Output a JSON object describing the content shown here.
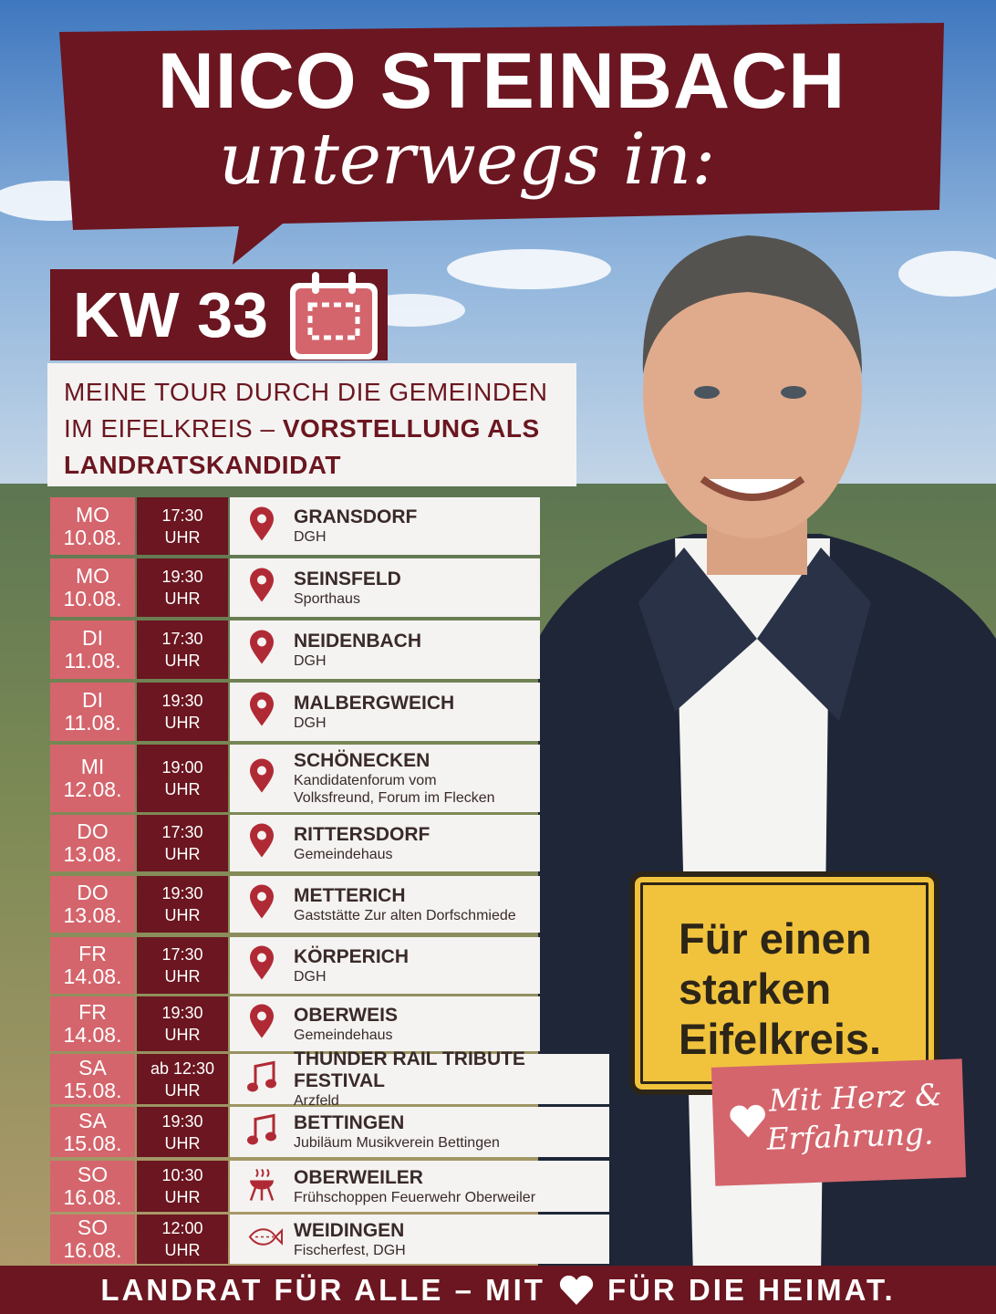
{
  "header": {
    "title": "NICO STEINBACH",
    "subtitle": "unterwegs in:"
  },
  "week": "KW 33",
  "intro": {
    "normal_lines": [
      "MEINE TOUR DURCH DIE GEMEINDEN",
      "IM EIFELKREIS –"
    ],
    "highlight_lines": [
      "VORSTELLUNG ALS",
      "LANDRATSKANDIDAT"
    ]
  },
  "events": [
    {
      "day": "MO",
      "date": "10.08.",
      "time": "17:30",
      "unit": "UHR",
      "place": "GRANSDORF",
      "details": [
        "DGH"
      ]
    },
    {
      "day": "MO",
      "date": "10.08.",
      "time": "19:30",
      "unit": "UHR",
      "place": "SEINSFELD",
      "details": [
        "Sporthaus"
      ]
    },
    {
      "day": "DI",
      "date": "11.08.",
      "time": "17:30",
      "unit": "UHR",
      "place": "NEIDENBACH",
      "details": [
        "DGH"
      ]
    },
    {
      "day": "DI",
      "date": "11.08.",
      "time": "19:30",
      "unit": "UHR",
      "place": "MALBERGWEICH",
      "details": [
        "DGH"
      ]
    },
    {
      "day": "MI",
      "date": "12.08.",
      "time": "19:00",
      "unit": "UHR",
      "place": "SCHÖNECKEN",
      "details": [
        "Kandidatenforum vom",
        "Volksfreund, Forum im Flecken"
      ]
    },
    {
      "day": "DO",
      "date": "13.08.",
      "time": "17:30",
      "unit": "UHR",
      "place": "RITTERSDORF",
      "details": [
        "Gemeindehaus"
      ]
    },
    {
      "day": "DO",
      "date": "13.08.",
      "time": "19:30",
      "unit": "UHR",
      "place": "METTERICH",
      "details": [
        "Gaststätte Zur alten Dorfschmiede"
      ]
    },
    {
      "day": "FR",
      "date": "14.08.",
      "time": "17:30",
      "unit": "UHR",
      "place": "KÖRPERICH",
      "details": [
        "DGH"
      ]
    },
    {
      "day": "FR",
      "date": "14.08.",
      "time": "19:30",
      "unit": "UHR",
      "place": "OBERWEIS",
      "details": [
        "Gemeindehaus"
      ]
    },
    {
      "day": "SA",
      "date": "15.08.",
      "time": "ab 12:30",
      "unit": "UHR",
      "place": "THUNDER RAIL TRIBUTE FESTIVAL",
      "details": [
        "Arzfeld"
      ]
    },
    {
      "day": "SA",
      "date": "15.08.",
      "time": "19:30",
      "unit": "UHR",
      "place": "BETTINGEN",
      "details": [
        "Jubiläum Musikverein Bettingen"
      ]
    },
    {
      "day": "SO",
      "date": "16.08.",
      "time": "10:30",
      "unit": "UHR",
      "place": "OBERWEILER",
      "details": [
        "Frühschoppen Feuerwehr Oberweiler"
      ]
    },
    {
      "day": "SO",
      "date": "16.08.",
      "time": "12:00",
      "unit": "UHR",
      "place": "WEIDINGEN",
      "details": [
        "Fischerfest, DGH"
      ]
    }
  ],
  "sign": {
    "lines": [
      "Für einen",
      "starken",
      "Eifelkreis."
    ]
  },
  "tag": {
    "lines": [
      "Mit Herz &",
      "Erfahrung."
    ]
  },
  "footer": {
    "before": "LANDRAT FÜR ALLE – MIT",
    "after": "FÜR DIE HEIMAT."
  }
}
